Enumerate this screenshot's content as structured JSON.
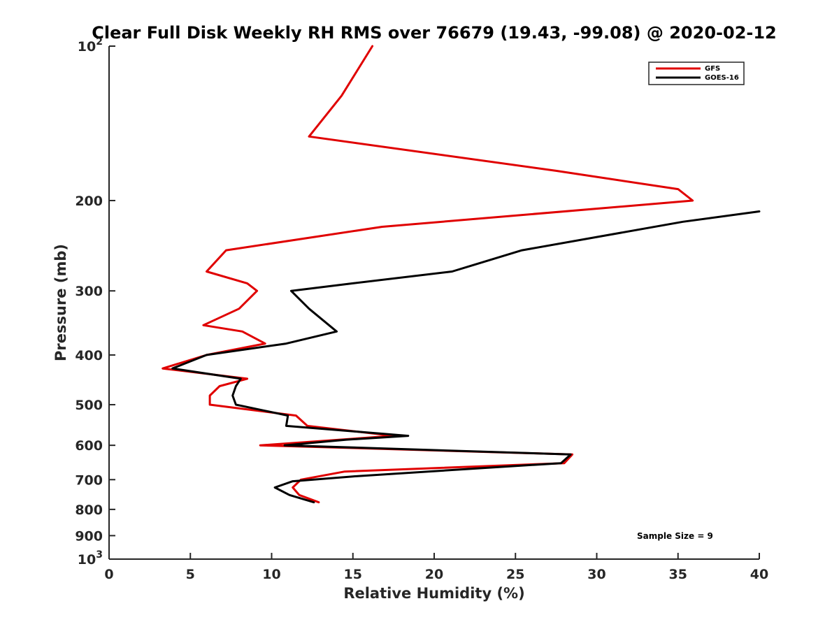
{
  "chart_data": {
    "type": "line",
    "title": "Clear Full Disk Weekly RH RMS over 76679 (19.43, -99.08) @ 2020-02-12",
    "xlabel": "Relative Humidity (%)",
    "ylabel": "Pressure (mb)",
    "xlim": [
      0,
      40
    ],
    "ylim": [
      100,
      1000
    ],
    "y_scale": "log",
    "y_reversed": true,
    "x_ticks": [
      0,
      5,
      10,
      15,
      20,
      25,
      30,
      35,
      40
    ],
    "x_tick_labels": [
      "0",
      "5",
      "10",
      "15",
      "20",
      "25",
      "30",
      "35",
      "40"
    ],
    "y_ticks": [
      100,
      200,
      300,
      400,
      500,
      600,
      700,
      800,
      900,
      1000
    ],
    "y_tick_labels": [
      {
        "base": "10",
        "sup": "2"
      },
      {
        "base": "200",
        "sup": ""
      },
      {
        "base": "300",
        "sup": ""
      },
      {
        "base": "400",
        "sup": ""
      },
      {
        "base": "500",
        "sup": ""
      },
      {
        "base": "600",
        "sup": ""
      },
      {
        "base": "700",
        "sup": ""
      },
      {
        "base": "800",
        "sup": ""
      },
      {
        "base": "900",
        "sup": ""
      },
      {
        "base": "10",
        "sup": "3"
      }
    ],
    "grid": false,
    "legend_position": "top-right",
    "annotation": "Sample Size = 9",
    "series": [
      {
        "name": "GFS",
        "color": "#e00000",
        "points": [
          [
            16.2,
            100
          ],
          [
            14.3,
            125
          ],
          [
            12.3,
            150
          ],
          [
            27.5,
            175
          ],
          [
            35.0,
            190
          ],
          [
            35.9,
            200
          ],
          [
            16.8,
            225
          ],
          [
            7.2,
            250
          ],
          [
            6.0,
            275
          ],
          [
            8.5,
            290
          ],
          [
            9.1,
            300
          ],
          [
            8.0,
            325
          ],
          [
            5.8,
            350
          ],
          [
            8.2,
            360
          ],
          [
            9.6,
            380
          ],
          [
            6.0,
            400
          ],
          [
            3.3,
            425
          ],
          [
            8.5,
            445
          ],
          [
            6.8,
            460
          ],
          [
            6.2,
            480
          ],
          [
            6.2,
            500
          ],
          [
            11.5,
            525
          ],
          [
            12.2,
            550
          ],
          [
            17.5,
            575
          ],
          [
            9.3,
            600
          ],
          [
            28.5,
            625
          ],
          [
            28.0,
            650
          ],
          [
            14.5,
            675
          ],
          [
            11.8,
            700
          ],
          [
            11.3,
            725
          ],
          [
            11.7,
            750
          ],
          [
            12.9,
            775
          ]
        ]
      },
      {
        "name": "GOES-16",
        "color": "#000000",
        "points": [
          [
            40.0,
            210
          ],
          [
            35.3,
            220
          ],
          [
            25.4,
            250
          ],
          [
            21.1,
            275
          ],
          [
            15.0,
            290
          ],
          [
            11.2,
            300
          ],
          [
            12.3,
            325
          ],
          [
            14.0,
            360
          ],
          [
            10.9,
            380
          ],
          [
            6.0,
            400
          ],
          [
            3.9,
            425
          ],
          [
            8.1,
            445
          ],
          [
            7.8,
            460
          ],
          [
            7.6,
            480
          ],
          [
            7.8,
            500
          ],
          [
            11.0,
            525
          ],
          [
            10.9,
            550
          ],
          [
            18.4,
            575
          ],
          [
            14.6,
            585
          ],
          [
            10.8,
            600
          ],
          [
            28.4,
            625
          ],
          [
            27.8,
            650
          ],
          [
            22.8,
            665
          ],
          [
            15.0,
            690
          ],
          [
            11.3,
            705
          ],
          [
            10.2,
            725
          ],
          [
            11.1,
            750
          ],
          [
            12.6,
            775
          ]
        ]
      }
    ]
  }
}
